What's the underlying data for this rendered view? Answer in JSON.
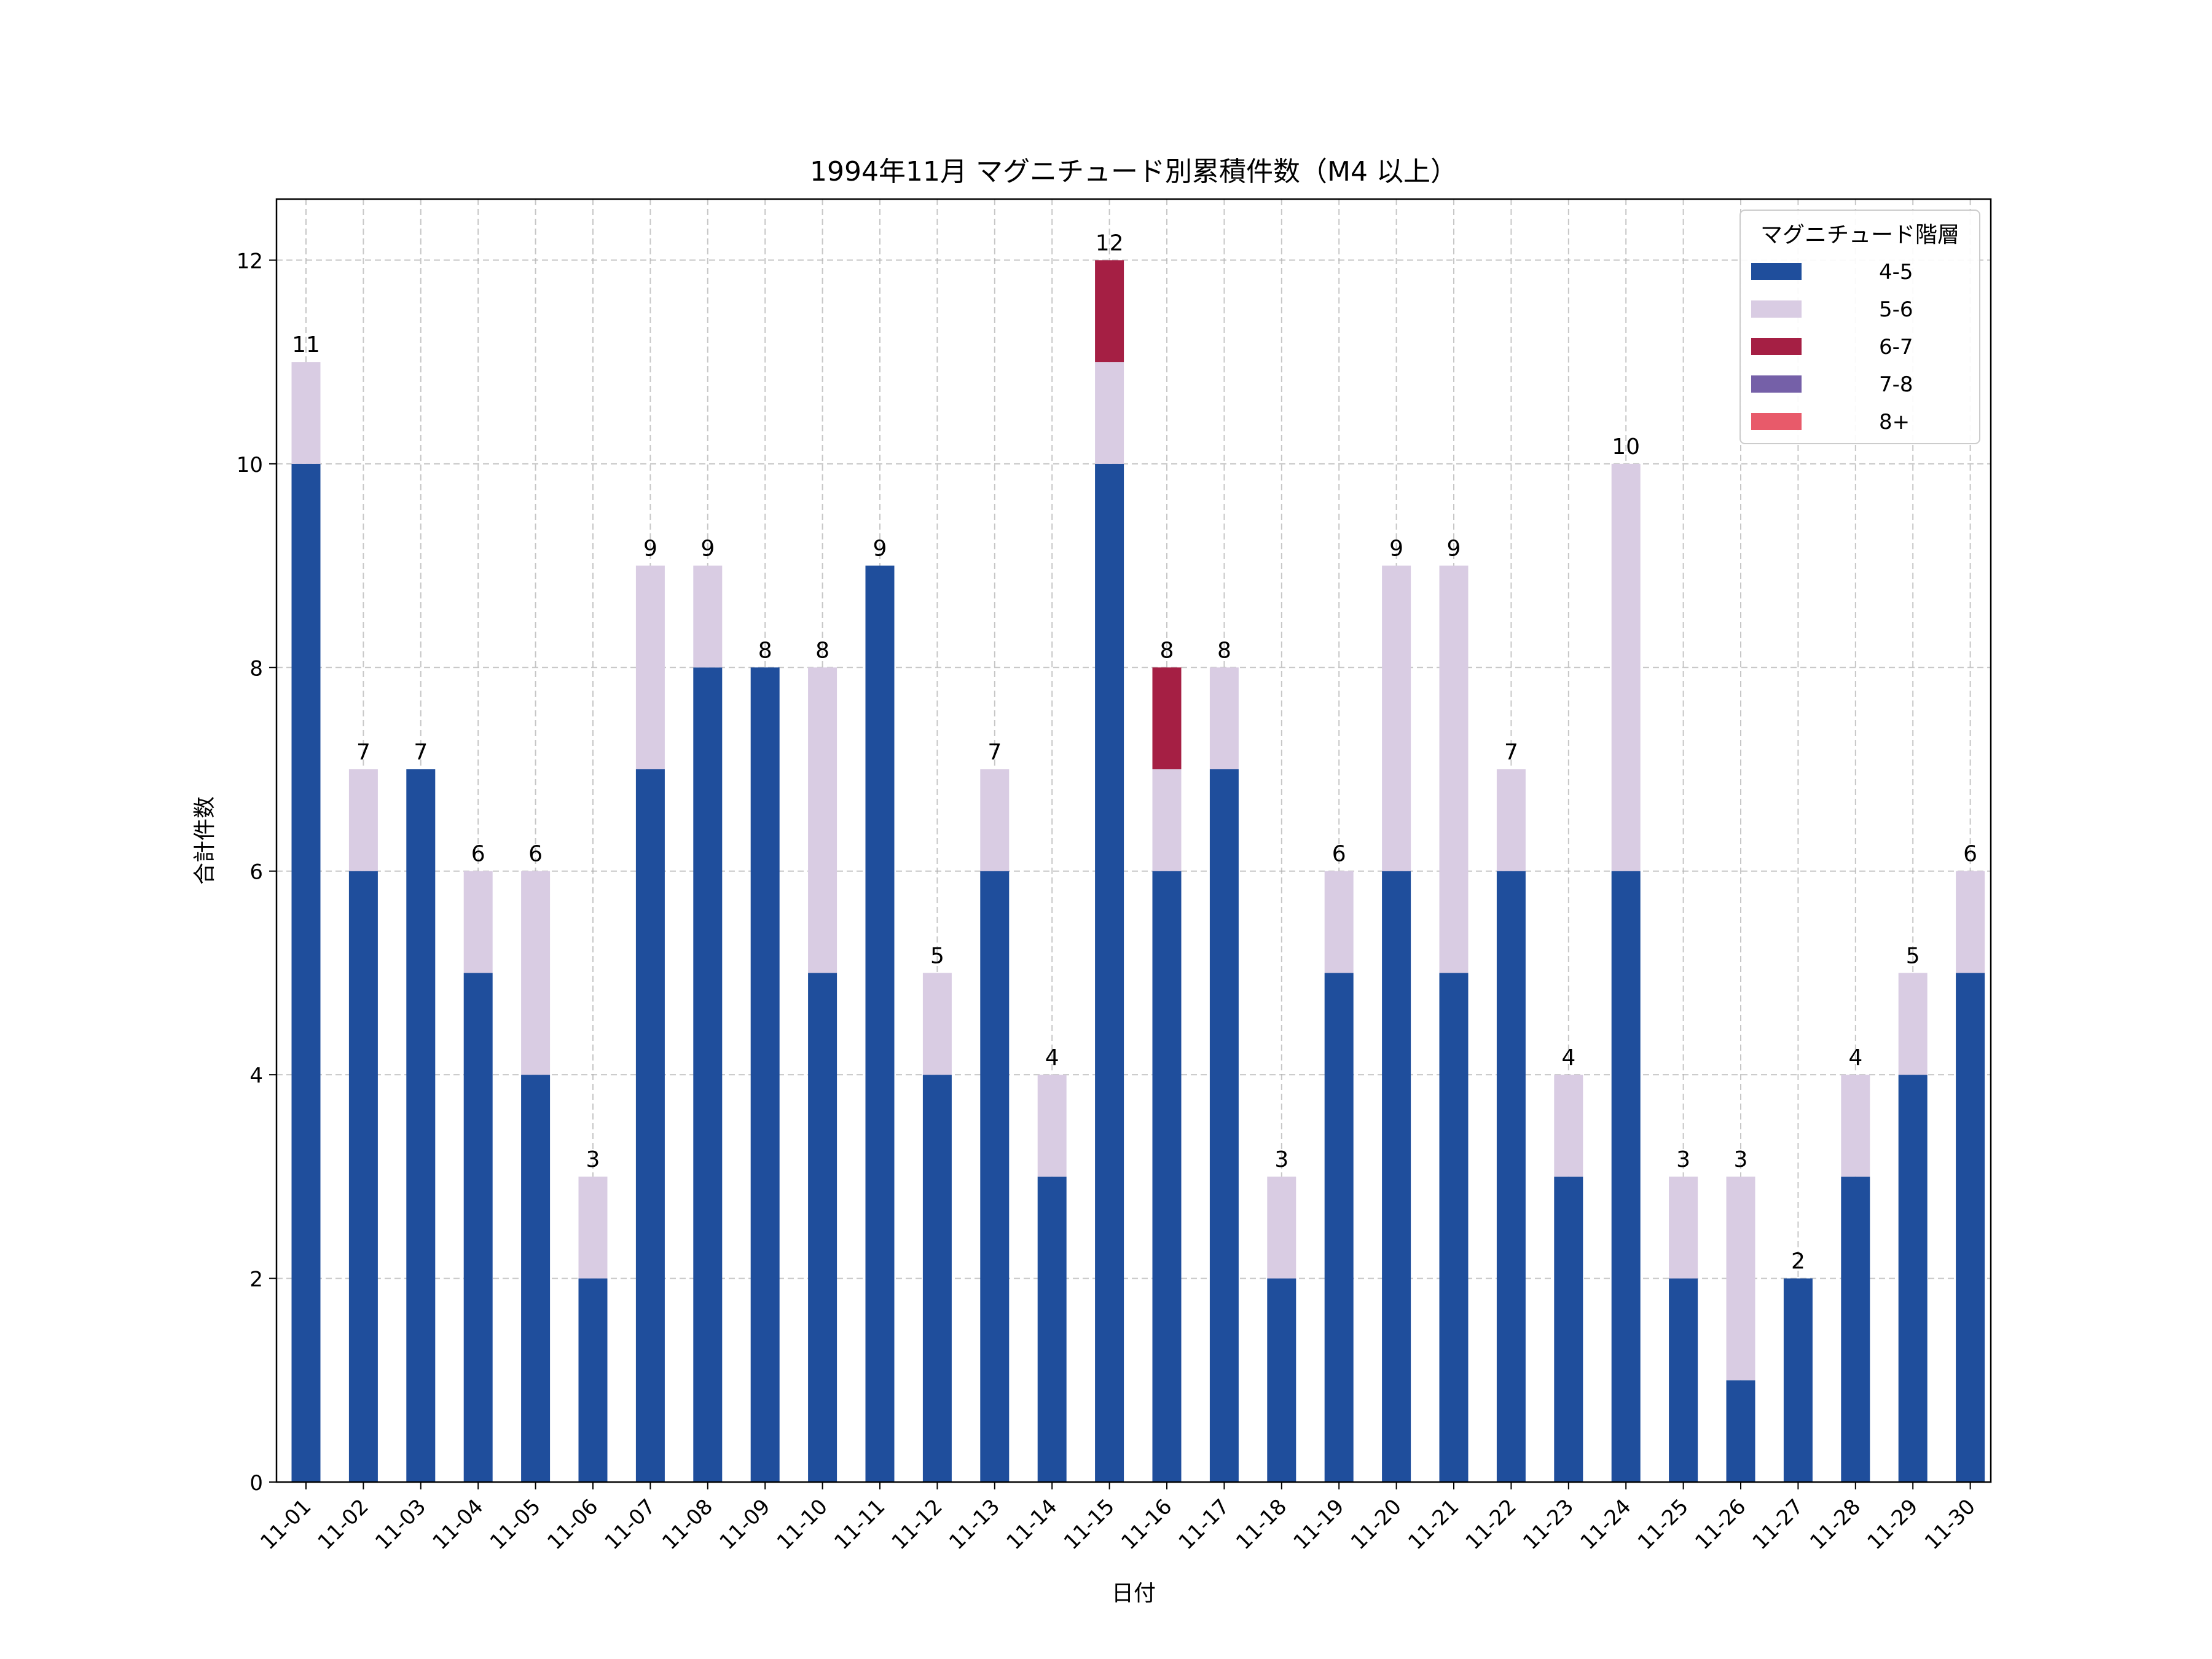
{
  "chart_data": {
    "type": "bar",
    "stacked": true,
    "title": "1994年11月 マグニチュード別累積件数（M4 以上）",
    "xlabel": "日付",
    "ylabel": "合計件数",
    "ylim": [
      0,
      12.6
    ],
    "yticks": [
      0,
      2,
      4,
      6,
      8,
      10,
      12
    ],
    "grid": true,
    "legend": {
      "title": "マグニチュード階層",
      "placement": "top-right"
    },
    "categories": [
      "11-01",
      "11-02",
      "11-03",
      "11-04",
      "11-05",
      "11-06",
      "11-07",
      "11-08",
      "11-09",
      "11-10",
      "11-11",
      "11-12",
      "11-13",
      "11-14",
      "11-15",
      "11-16",
      "11-17",
      "11-18",
      "11-19",
      "11-20",
      "11-21",
      "11-22",
      "11-23",
      "11-24",
      "11-25",
      "11-26",
      "11-27",
      "11-28",
      "11-29",
      "11-30"
    ],
    "series": [
      {
        "name": "4-5",
        "color": "#1f4e9c",
        "values": [
          10,
          6,
          7,
          5,
          4,
          2,
          7,
          8,
          8,
          5,
          9,
          4,
          6,
          3,
          10,
          6,
          7,
          2,
          5,
          6,
          5,
          6,
          3,
          6,
          2,
          1,
          2,
          3,
          4,
          5
        ]
      },
      {
        "name": "5-6",
        "color": "#d9cce3",
        "values": [
          1,
          1,
          0,
          1,
          2,
          1,
          2,
          1,
          0,
          3,
          0,
          1,
          1,
          1,
          1,
          1,
          1,
          1,
          1,
          3,
          4,
          1,
          1,
          4,
          1,
          2,
          0,
          1,
          1,
          1
        ]
      },
      {
        "name": "6-7",
        "color": "#a51f44",
        "values": [
          0,
          0,
          0,
          0,
          0,
          0,
          0,
          0,
          0,
          0,
          0,
          0,
          0,
          0,
          1,
          1,
          0,
          0,
          0,
          0,
          0,
          0,
          0,
          0,
          0,
          0,
          0,
          0,
          0,
          0
        ]
      },
      {
        "name": "7-8",
        "color": "#7560a8",
        "values": [
          0,
          0,
          0,
          0,
          0,
          0,
          0,
          0,
          0,
          0,
          0,
          0,
          0,
          0,
          0,
          0,
          0,
          0,
          0,
          0,
          0,
          0,
          0,
          0,
          0,
          0,
          0,
          0,
          0,
          0
        ]
      },
      {
        "name": "8+",
        "color": "#e85a6a",
        "values": [
          0,
          0,
          0,
          0,
          0,
          0,
          0,
          0,
          0,
          0,
          0,
          0,
          0,
          0,
          0,
          0,
          0,
          0,
          0,
          0,
          0,
          0,
          0,
          0,
          0,
          0,
          0,
          0,
          0,
          0
        ]
      }
    ],
    "totals": [
      11,
      7,
      7,
      6,
      6,
      3,
      9,
      9,
      8,
      8,
      9,
      5,
      7,
      4,
      12,
      8,
      8,
      3,
      6,
      9,
      9,
      7,
      4,
      10,
      3,
      3,
      2,
      4,
      5,
      6
    ]
  }
}
